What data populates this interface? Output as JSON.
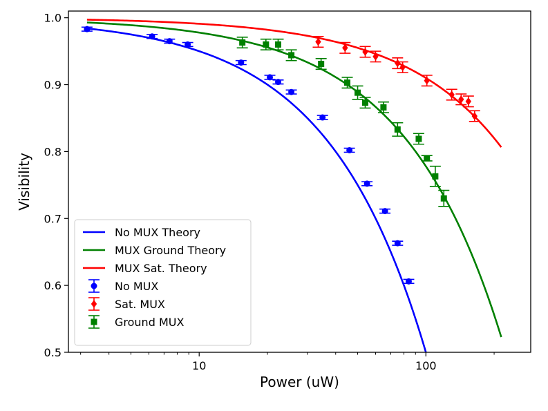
{
  "chart_data": {
    "type": "scatter",
    "xlabel": "Power (uW)",
    "ylabel": "Visibility",
    "xscale": "log",
    "xlim": [
      2.65,
      290
    ],
    "ylim": [
      0.5,
      1.01
    ],
    "x_ticks": [
      10,
      100
    ],
    "x_tick_labels": [
      "10",
      "100"
    ],
    "y_ticks": [
      0.5,
      0.6,
      0.7,
      0.8,
      0.9,
      1.0
    ],
    "y_tick_labels": [
      "0.5",
      "0.6",
      "0.7",
      "0.8",
      "0.9",
      "1.0"
    ],
    "grid": false,
    "legend_position": "lower-left",
    "theory_lines": [
      {
        "name": "No MUX Theory",
        "color": "#0000ff",
        "a": 0.005,
        "x_range": [
          3.2,
          100
        ]
      },
      {
        "name": "MUX Ground Theory",
        "color": "#008000",
        "a": 0.00222,
        "x_range": [
          3.2,
          215
        ]
      },
      {
        "name": "MUX Sat. Theory",
        "color": "#ff0000",
        "a": 0.0009,
        "x_range": [
          3.2,
          215
        ]
      }
    ],
    "series": [
      {
        "name": "No MUX",
        "color": "#0000ff",
        "marker": "circle",
        "points": [
          {
            "x": 3.2,
            "y": 0.983,
            "err": 0.003
          },
          {
            "x": 6.2,
            "y": 0.972,
            "err": 0.003
          },
          {
            "x": 7.4,
            "y": 0.965,
            "err": 0.003
          },
          {
            "x": 8.9,
            "y": 0.96,
            "err": 0.003
          },
          {
            "x": 15.3,
            "y": 0.933,
            "err": 0.003
          },
          {
            "x": 20.5,
            "y": 0.911,
            "err": 0.003
          },
          {
            "x": 22.3,
            "y": 0.904,
            "err": 0.003
          },
          {
            "x": 25.5,
            "y": 0.889,
            "err": 0.003
          },
          {
            "x": 35.0,
            "y": 0.851,
            "err": 0.003
          },
          {
            "x": 46.0,
            "y": 0.802,
            "err": 0.003
          },
          {
            "x": 55.0,
            "y": 0.752,
            "err": 0.003
          },
          {
            "x": 66.0,
            "y": 0.711,
            "err": 0.003
          },
          {
            "x": 75.0,
            "y": 0.663,
            "err": 0.003
          },
          {
            "x": 84.0,
            "y": 0.606,
            "err": 0.003
          }
        ]
      },
      {
        "name": "Sat. MUX",
        "color": "#ff0000",
        "marker": "diamond",
        "points": [
          {
            "x": 33.5,
            "y": 0.964,
            "err": 0.008
          },
          {
            "x": 44.0,
            "y": 0.955,
            "err": 0.008
          },
          {
            "x": 54.0,
            "y": 0.949,
            "err": 0.008
          },
          {
            "x": 60.0,
            "y": 0.942,
            "err": 0.008
          },
          {
            "x": 75.0,
            "y": 0.932,
            "err": 0.008
          },
          {
            "x": 79.0,
            "y": 0.926,
            "err": 0.008
          },
          {
            "x": 101.0,
            "y": 0.906,
            "err": 0.008
          },
          {
            "x": 130.0,
            "y": 0.885,
            "err": 0.008
          },
          {
            "x": 143.0,
            "y": 0.878,
            "err": 0.008
          },
          {
            "x": 154.0,
            "y": 0.875,
            "err": 0.008
          },
          {
            "x": 164.0,
            "y": 0.853,
            "err": 0.008
          }
        ]
      },
      {
        "name": "Ground MUX",
        "color": "#008000",
        "marker": "square",
        "points": [
          {
            "x": 15.5,
            "y": 0.963,
            "err": 0.008
          },
          {
            "x": 19.7,
            "y": 0.96,
            "err": 0.008
          },
          {
            "x": 22.3,
            "y": 0.96,
            "err": 0.008
          },
          {
            "x": 25.5,
            "y": 0.944,
            "err": 0.008
          },
          {
            "x": 34.5,
            "y": 0.931,
            "err": 0.008
          },
          {
            "x": 45.0,
            "y": 0.903,
            "err": 0.008
          },
          {
            "x": 50.0,
            "y": 0.888,
            "err": 0.01
          },
          {
            "x": 54.0,
            "y": 0.873,
            "err": 0.008
          },
          {
            "x": 65.0,
            "y": 0.866,
            "err": 0.008
          },
          {
            "x": 75.0,
            "y": 0.833,
            "err": 0.01
          },
          {
            "x": 93.0,
            "y": 0.819,
            "err": 0.008
          },
          {
            "x": 101.0,
            "y": 0.79,
            "err": 0.004
          },
          {
            "x": 110.0,
            "y": 0.763,
            "err": 0.015
          },
          {
            "x": 120.0,
            "y": 0.73,
            "err": 0.012
          }
        ]
      }
    ],
    "legend": {
      "lines": [
        "No MUX Theory",
        "MUX Ground Theory",
        "MUX Sat. Theory"
      ],
      "markers": [
        "No MUX",
        "Sat. MUX",
        "Ground MUX"
      ]
    }
  }
}
